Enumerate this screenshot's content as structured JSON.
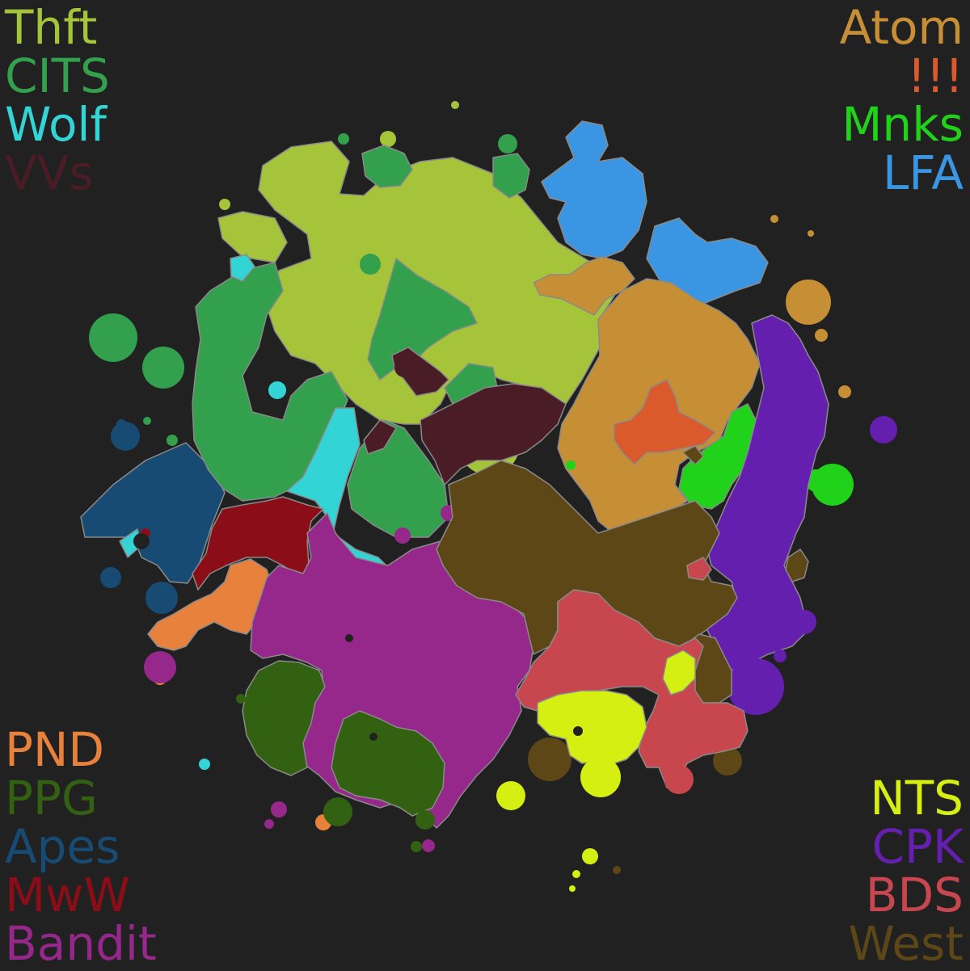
{
  "legend": {
    "top_left": [
      {
        "name": "Thft",
        "color": "#a5c43a"
      },
      {
        "name": "CITS",
        "color": "#33a04d"
      },
      {
        "name": "Wolf",
        "color": "#33d4d6"
      },
      {
        "name": "VVs",
        "color": "#4a1c25"
      }
    ],
    "top_right": [
      {
        "name": "Atom",
        "color": "#c78f35"
      },
      {
        "name": "!!!",
        "color": "#db5a2b"
      },
      {
        "name": "Mnks",
        "color": "#20d21a"
      },
      {
        "name": "LFA",
        "color": "#3a96e3"
      }
    ],
    "bottom_left": [
      {
        "name": "PND",
        "color": "#e8813c"
      },
      {
        "name": "PPG",
        "color": "#336112"
      },
      {
        "name": "Apes",
        "color": "#174b73"
      },
      {
        "name": "MwW",
        "color": "#8b0d17"
      },
      {
        "name": "Bandit",
        "color": "#95288a"
      }
    ],
    "bottom_right": [
      {
        "name": "NTS",
        "color": "#d6ef13"
      },
      {
        "name": "CPK",
        "color": "#651fae"
      },
      {
        "name": "BDS",
        "color": "#c8474e"
      },
      {
        "name": "West",
        "color": "#5d4716"
      }
    ]
  }
}
